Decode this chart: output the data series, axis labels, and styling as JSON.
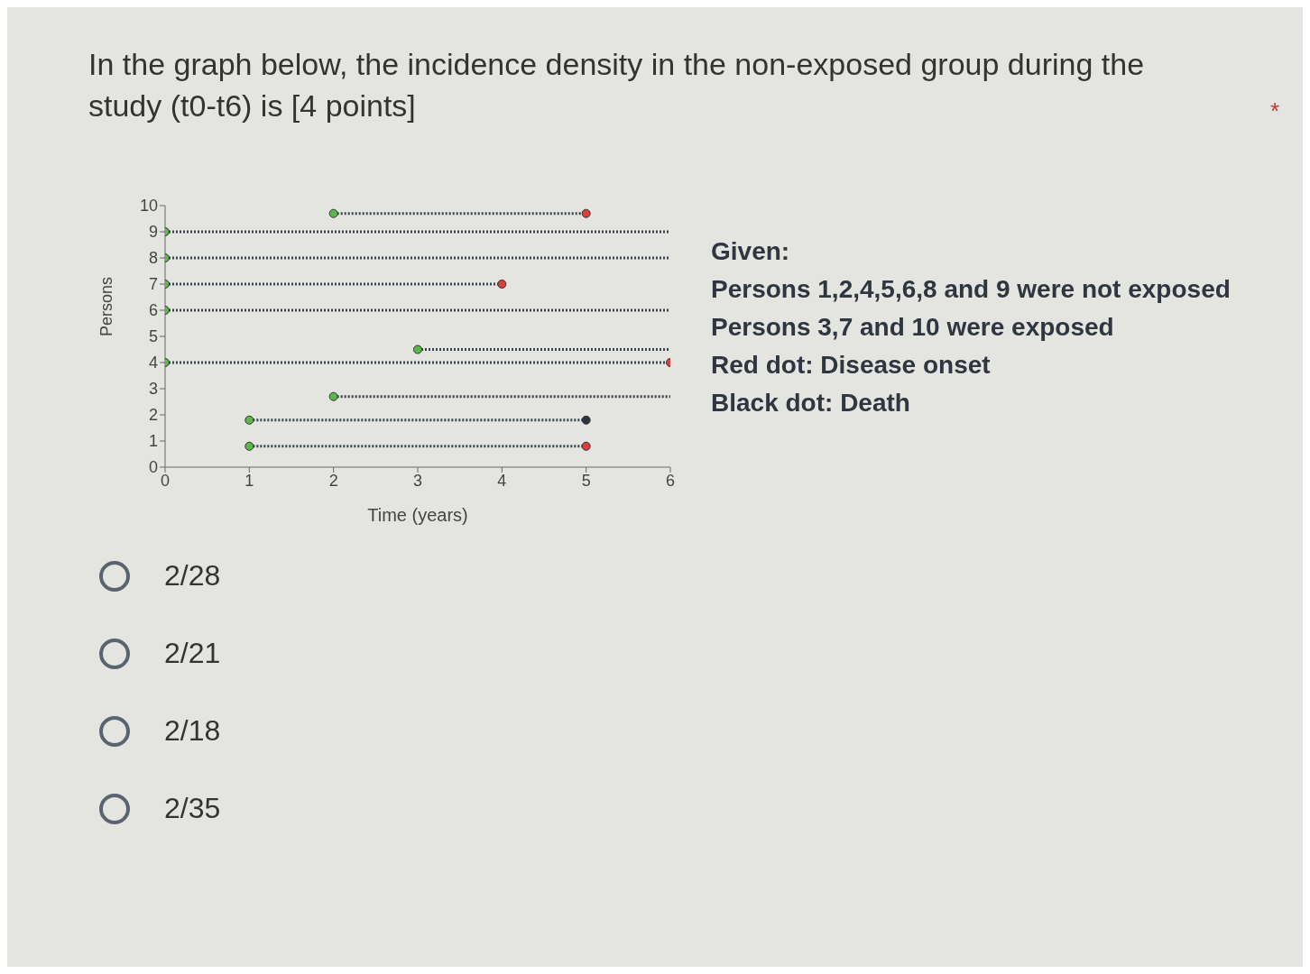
{
  "chart_data": {
    "type": "line",
    "title": "In the graph below, the incidence density in the non-exposed group during the study (t0-t6) is [4 points]",
    "xlabel": "Time (years)",
    "ylabel": "Persons",
    "xlim": [
      0,
      6
    ],
    "ylim": [
      0,
      10
    ],
    "xticks": [
      0,
      1,
      2,
      3,
      4,
      5,
      6
    ],
    "yticks": [
      0,
      1,
      2,
      3,
      4,
      5,
      6,
      7,
      8,
      9,
      10
    ],
    "grid": false,
    "marker": "none",
    "line_style": "dotted",
    "series": [
      {
        "type": "line",
        "color": "#3a4250",
        "x": [
          2,
          5
        ],
        "values": [
          9.7,
          9.7
        ]
      },
      {
        "type": "line",
        "color": "#3a4250",
        "x": [
          0,
          6
        ],
        "values": [
          9,
          9
        ]
      },
      {
        "type": "line",
        "color": "#3a4250",
        "x": [
          0,
          6
        ],
        "values": [
          8,
          8
        ]
      },
      {
        "type": "line",
        "color": "#3a4250",
        "x": [
          0,
          4
        ],
        "values": [
          7,
          7
        ]
      },
      {
        "type": "line",
        "color": "#3a4250",
        "x": [
          0,
          6
        ],
        "values": [
          6,
          6
        ]
      },
      {
        "type": "line",
        "color": "#3a4250",
        "x": [
          3,
          6
        ],
        "values": [
          4.5,
          4.5
        ]
      },
      {
        "type": "line",
        "color": "#3a4250",
        "x": [
          0,
          6
        ],
        "values": [
          4,
          4
        ]
      },
      {
        "type": "line",
        "color": "#3a4250",
        "x": [
          2,
          6
        ],
        "values": [
          2.7,
          2.7
        ]
      },
      {
        "type": "line",
        "color": "#3a4250",
        "x": [
          1,
          5
        ],
        "values": [
          1.8,
          1.8
        ]
      },
      {
        "type": "line",
        "color": "#3a4250",
        "x": [
          1,
          5
        ],
        "values": [
          0.8,
          0.8
        ]
      },
      {
        "type": "scatter",
        "marker": "circle",
        "color": "#5cb84a",
        "x": [
          2,
          0,
          0,
          0,
          0,
          3,
          0,
          2,
          1,
          1
        ],
        "values": [
          9.7,
          9,
          8,
          7,
          6,
          4.5,
          4,
          2.7,
          1.8,
          0.8
        ]
      },
      {
        "type": "scatter",
        "marker": "circle",
        "color": "#d9413a",
        "x": [
          5,
          4,
          6,
          5
        ],
        "values": [
          9.7,
          7,
          4,
          0.8
        ]
      },
      {
        "type": "scatter",
        "marker": "circle",
        "color": "#2c3440",
        "x": [
          5
        ],
        "values": [
          1.8
        ]
      }
    ],
    "annotations": [
      "*",
      "Given:",
      "Persons 1,2,4,5,6,8 and 9  were not exposed",
      "Persons 3,7 and 10 were exposed",
      "Red dot: Disease onset",
      "Black dot: Death",
      "2/28",
      "2/21",
      "2/18",
      "2/35"
    ]
  }
}
